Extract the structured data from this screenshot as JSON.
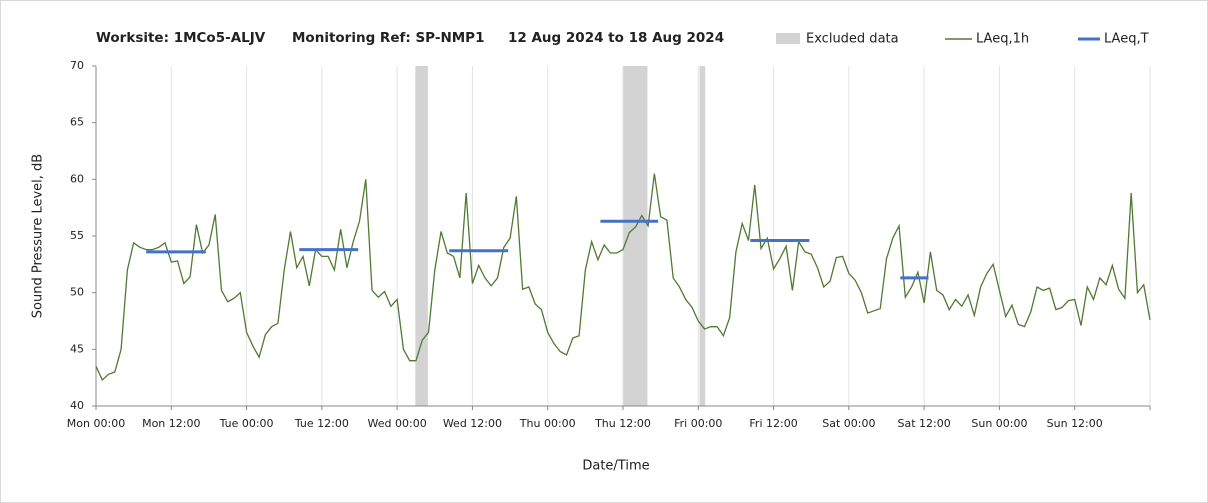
{
  "chart_data": {
    "type": "line",
    "title_parts": [
      "Worksite: 1MCo5-ALJV",
      "Monitoring Ref: SP-NMP1",
      "12 Aug 2024 to 18 Aug 2024"
    ],
    "x_label": "Date/Time",
    "y_label": "Sound Pressure Level, dB",
    "xlim": [
      0,
      168
    ],
    "ylim": [
      40,
      70
    ],
    "yticks": [
      40,
      45,
      50,
      55,
      60,
      65,
      70
    ],
    "xticks": [
      {
        "value": 0,
        "label": "Mon 00:00"
      },
      {
        "value": 12,
        "label": "Mon 12:00"
      },
      {
        "value": 24,
        "label": "Tue 00:00"
      },
      {
        "value": 36,
        "label": "Tue 12:00"
      },
      {
        "value": 48,
        "label": "Wed 00:00"
      },
      {
        "value": 60,
        "label": "Wed 12:00"
      },
      {
        "value": 72,
        "label": "Thu 00:00"
      },
      {
        "value": 84,
        "label": "Thu 12:00"
      },
      {
        "value": 96,
        "label": "Fri 00:00"
      },
      {
        "value": 108,
        "label": "Fri 12:00"
      },
      {
        "value": 120,
        "label": "Sat 00:00"
      },
      {
        "value": 132,
        "label": "Sat 12:00"
      },
      {
        "value": 144,
        "label": "Sun 00:00"
      },
      {
        "value": 156,
        "label": "Sun 12:00"
      },
      {
        "value": 168,
        "label": ""
      }
    ],
    "grid": true,
    "excluded": {
      "name": "Excluded data",
      "color": "#d3d3d3",
      "ranges": [
        [
          50.9,
          52.9
        ],
        [
          84,
          87.9
        ],
        [
          96.2,
          97.1
        ]
      ]
    },
    "x": [
      0,
      1,
      2,
      3,
      4,
      5,
      6,
      7,
      8,
      9,
      10,
      11,
      12,
      13,
      14,
      15,
      16,
      17,
      18,
      19,
      20,
      21,
      22,
      23,
      24,
      25,
      26,
      27,
      28,
      29,
      30,
      31,
      32,
      33,
      34,
      35,
      36,
      37,
      38,
      39,
      40,
      41,
      42,
      43,
      44,
      45,
      46,
      47,
      48,
      49,
      50,
      51,
      52,
      53,
      54,
      55,
      56,
      57,
      58,
      59,
      60,
      61,
      62,
      63,
      64,
      65,
      66,
      67,
      68,
      69,
      70,
      71,
      72,
      73,
      74,
      75,
      76,
      77,
      78,
      79,
      80,
      81,
      82,
      83,
      84,
      85,
      86,
      87,
      88,
      89,
      90,
      91,
      92,
      93,
      94,
      95,
      96,
      97,
      98,
      99,
      100,
      101,
      102,
      103,
      104,
      105,
      106,
      107,
      108,
      109,
      110,
      111,
      112,
      113,
      114,
      115,
      116,
      117,
      118,
      119,
      120,
      121,
      122,
      123,
      124,
      125,
      126,
      127,
      128,
      129,
      130,
      131,
      132,
      133,
      134,
      135,
      136,
      137,
      138,
      139,
      140,
      141,
      142,
      143,
      144,
      145,
      146,
      147,
      148,
      149,
      150,
      151,
      152,
      153,
      154,
      155,
      156,
      157,
      158,
      159,
      160,
      161,
      162,
      163,
      164,
      165,
      166,
      167,
      168
    ],
    "series": [
      {
        "name": "LAeq,1h",
        "color": "#4f7a32",
        "values": [
          43.5,
          42.3,
          42.8,
          43.0,
          45.0,
          52.0,
          54.4,
          54.0,
          53.8,
          53.8,
          54.0,
          54.4,
          52.7,
          52.8,
          50.8,
          51.4,
          56.0,
          53.5,
          54.2,
          56.9,
          50.2,
          49.2,
          49.5,
          50.0,
          46.5,
          45.3,
          44.3,
          46.3,
          47.0,
          47.3,
          52.0,
          55.4,
          52.2,
          53.2,
          50.6,
          53.8,
          53.2,
          53.2,
          52.0,
          55.6,
          52.2,
          54.5,
          56.3,
          60.0,
          50.2,
          49.6,
          50.1,
          48.8,
          49.4,
          45.0,
          44.0,
          44.0,
          45.8,
          46.5,
          52.0,
          55.4,
          53.5,
          53.2,
          51.3,
          58.8,
          50.8,
          52.4,
          51.3,
          50.6,
          51.3,
          54.0,
          54.8,
          58.5,
          50.3,
          50.5,
          49.0,
          48.5,
          46.5,
          45.5,
          44.8,
          44.5,
          46.0,
          46.2,
          52.0,
          54.5,
          52.9,
          54.2,
          53.5,
          53.5,
          53.8,
          55.3,
          55.8,
          56.8,
          55.9,
          60.5,
          56.7,
          56.4,
          51.3,
          50.5,
          49.4,
          48.7,
          47.5,
          46.8,
          47.0,
          47.0,
          46.2,
          47.8,
          53.6,
          56.1,
          54.6,
          59.5,
          53.9,
          54.8,
          52.1,
          53.0,
          54.1,
          50.2,
          54.5,
          53.6,
          53.4,
          52.2,
          50.5,
          51.0,
          53.1,
          53.2,
          51.7,
          51.1,
          50.0,
          48.2,
          48.4,
          48.6,
          53.0,
          54.8,
          55.9,
          49.6,
          50.5,
          51.8,
          49.1,
          53.6,
          50.2,
          49.8,
          48.5,
          49.4,
          48.8,
          49.8,
          48.0,
          50.5,
          51.7,
          52.5,
          50.2,
          47.9,
          48.9,
          47.2,
          47.0,
          48.3,
          50.5,
          50.2,
          50.4,
          48.5,
          48.7,
          49.3,
          49.4,
          47.1,
          50.5,
          49.4,
          51.3,
          50.7,
          52.4,
          50.3,
          49.5,
          58.8,
          50.0,
          50.7,
          47.6
        ]
      },
      {
        "name": "LAeq,T",
        "color": "#4472c4",
        "segments": [
          {
            "start": 8,
            "end": 17.5,
            "value": 53.6
          },
          {
            "start": 32.4,
            "end": 41.8,
            "value": 53.8
          },
          {
            "start": 56.3,
            "end": 65.7,
            "value": 53.7
          },
          {
            "start": 80.4,
            "end": 89.6,
            "value": 56.3
          },
          {
            "start": 104.3,
            "end": 113.7,
            "value": 54.6
          },
          {
            "start": 128.2,
            "end": 132.7,
            "value": 51.3
          }
        ]
      }
    ]
  }
}
